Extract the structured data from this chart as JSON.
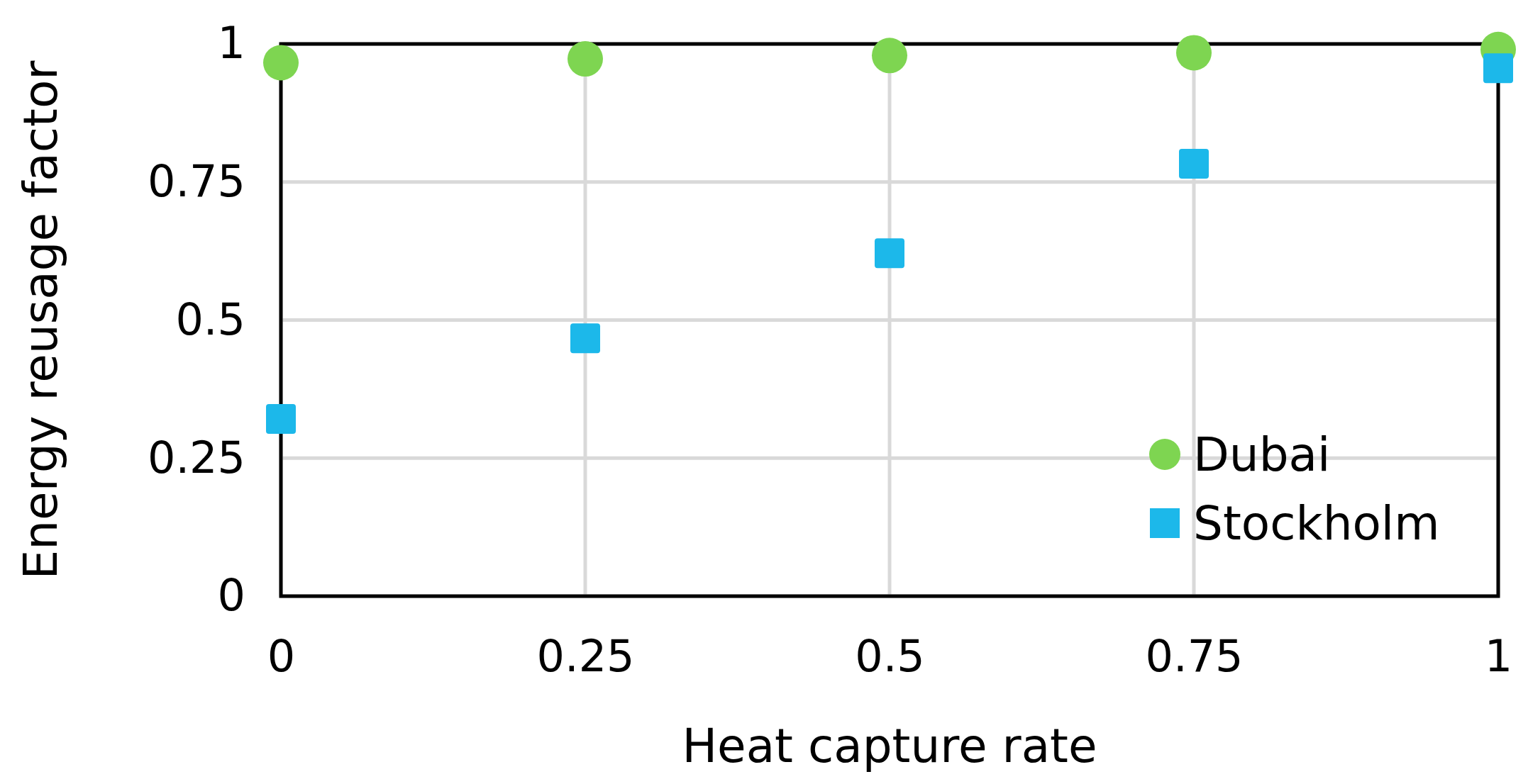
{
  "chart_data": {
    "type": "scatter",
    "xlabel": "Heat capture rate",
    "ylabel": "Energy reusage factor",
    "x": [
      0,
      0.25,
      0.5,
      0.75,
      1
    ],
    "series": [
      {
        "name": "Dubai",
        "color": "#7ed551",
        "marker": "circle",
        "values": [
          0.966,
          0.973,
          0.979,
          0.984,
          0.99
        ]
      },
      {
        "name": "Stockholm",
        "color": "#1cb8ea",
        "marker": "square",
        "values": [
          0.321,
          0.467,
          0.621,
          0.783,
          0.956
        ]
      }
    ],
    "xlim": [
      0,
      1
    ],
    "ylim": [
      0,
      1
    ],
    "xticks": [
      0,
      0.25,
      0.5,
      0.75,
      1
    ],
    "yticks": [
      0,
      0.25,
      0.5,
      0.75,
      1
    ],
    "grid": true,
    "legend": "bottom right"
  }
}
